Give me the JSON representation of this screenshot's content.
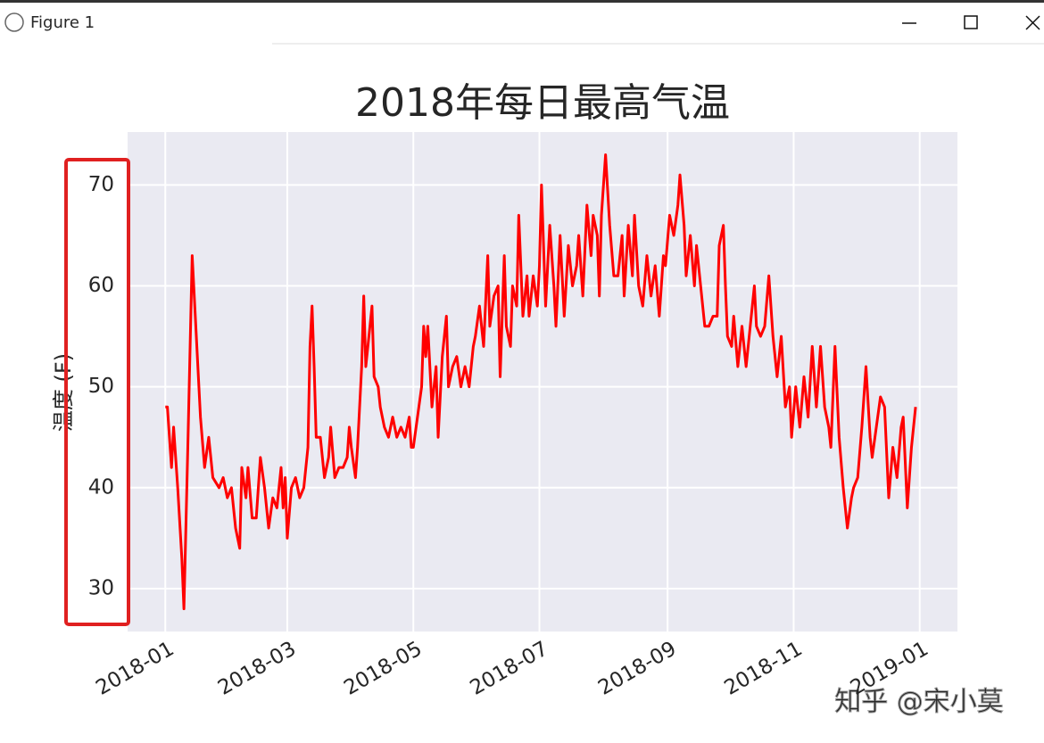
{
  "window": {
    "title": "Figure 1"
  },
  "watermark": "知乎 @宋小莫",
  "chart_data": {
    "type": "line",
    "title": "2018年每日最高气温",
    "y_label": "温度 (F)",
    "x": [
      0,
      1,
      3,
      4,
      6,
      8,
      9,
      11,
      13,
      15,
      17,
      19,
      21,
      23,
      26,
      28,
      30,
      32,
      34,
      36,
      37,
      39,
      40,
      42,
      44,
      46,
      48,
      50,
      52,
      54,
      56,
      57,
      58,
      59,
      61,
      63,
      65,
      67,
      69,
      70,
      71,
      72,
      73,
      75,
      77,
      79,
      80,
      82,
      84,
      86,
      88,
      89,
      90,
      92,
      93,
      95,
      96,
      97,
      99,
      100,
      101,
      103,
      104,
      106,
      108,
      110,
      112,
      114,
      116,
      118,
      119,
      120,
      122,
      124,
      125,
      126,
      127,
      129,
      131,
      132,
      134,
      136,
      137,
      139,
      141,
      143,
      145,
      147,
      149,
      150,
      152,
      154,
      156,
      157,
      159,
      161,
      162,
      164,
      165,
      167,
      168,
      170,
      171,
      173,
      175,
      176,
      178,
      180,
      181,
      182,
      184,
      186,
      188,
      189,
      191,
      193,
      195,
      197,
      199,
      200,
      202,
      204,
      206,
      207,
      209,
      210,
      211,
      213,
      215,
      217,
      219,
      221,
      222,
      224,
      226,
      227,
      229,
      231,
      233,
      235,
      237,
      239,
      241,
      242,
      244,
      246,
      248,
      249,
      251,
      252,
      254,
      256,
      257,
      259,
      261,
      263,
      265,
      267,
      268,
      270,
      271,
      272,
      274,
      275,
      277,
      279,
      281,
      283,
      285,
      286,
      288,
      290,
      292,
      294,
      296,
      298,
      300,
      302,
      303,
      305,
      307,
      309,
      311,
      313,
      315,
      317,
      319,
      321,
      322,
      324,
      326,
      328,
      330,
      332,
      333,
      335,
      337,
      339,
      341,
      342,
      344,
      346,
      348,
      350,
      352,
      354,
      356,
      357,
      359,
      361,
      363
    ],
    "values": [
      48,
      48,
      42,
      46,
      40,
      33,
      28,
      45,
      63,
      55,
      47,
      42,
      45,
      41,
      40,
      41,
      39,
      40,
      36,
      34,
      42,
      39,
      42,
      37,
      37,
      43,
      40,
      36,
      39,
      38,
      42,
      38,
      41,
      35,
      40,
      41,
      39,
      40,
      44,
      54,
      58,
      52,
      45,
      45,
      41,
      43,
      46,
      41,
      42,
      42,
      43,
      46,
      44,
      41,
      44,
      52,
      59,
      52,
      56,
      58,
      51,
      50,
      48,
      46,
      45,
      47,
      45,
      46,
      45,
      47,
      44,
      44,
      47,
      50,
      56,
      53,
      56,
      48,
      52,
      45,
      53,
      57,
      50,
      52,
      53,
      50,
      52,
      50,
      54,
      55,
      58,
      54,
      63,
      56,
      59,
      60,
      51,
      63,
      56,
      54,
      60,
      58,
      67,
      57,
      61,
      57,
      61,
      58,
      62,
      70,
      58,
      66,
      60,
      56,
      65,
      57,
      64,
      60,
      62,
      65,
      59,
      68,
      63,
      67,
      65,
      59,
      67,
      73,
      66,
      61,
      61,
      65,
      59,
      66,
      61,
      67,
      60,
      58,
      63,
      59,
      62,
      57,
      63,
      62,
      67,
      65,
      68,
      71,
      66,
      61,
      65,
      60,
      64,
      60,
      56,
      56,
      57,
      57,
      64,
      66,
      60,
      55,
      54,
      57,
      52,
      56,
      52,
      56,
      60,
      56,
      55,
      56,
      61,
      55,
      51,
      55,
      48,
      50,
      45,
      50,
      46,
      51,
      47,
      54,
      48,
      54,
      48,
      46,
      44,
      54,
      45,
      40,
      36,
      39,
      40,
      41,
      46,
      52,
      45,
      43,
      46,
      49,
      48,
      39,
      44,
      41,
      46,
      47,
      38,
      44,
      48
    ],
    "color": "#ff0000",
    "xlim": [
      -18.25,
      383.25
    ],
    "xticks": [
      {
        "value": 0,
        "label": "2018-01"
      },
      {
        "value": 59,
        "label": "2018-03"
      },
      {
        "value": 120,
        "label": "2018-05"
      },
      {
        "value": 181,
        "label": "2018-07"
      },
      {
        "value": 243,
        "label": "2018-09"
      },
      {
        "value": 304,
        "label": "2018-11"
      },
      {
        "value": 365,
        "label": "2019-01"
      }
    ],
    "ylim": [
      25.75,
      75.25
    ],
    "yticks": [
      30,
      40,
      50,
      60,
      70
    ],
    "grid": true
  }
}
